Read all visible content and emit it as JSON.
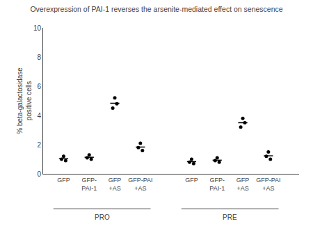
{
  "chart_data": {
    "type": "scatter",
    "title": "Overexpression of PAI-1 reverses the arsenite-mediated effect on senescence",
    "ylabel": "% beta-galactosidase\npositive cells",
    "ylim": [
      0,
      10
    ],
    "yticks": [
      0,
      2,
      4,
      6,
      8,
      10
    ],
    "grid": false,
    "color": "#000000",
    "marker": "circle",
    "groups": [
      {
        "name": "PRO",
        "categories": [
          "GFP",
          "GFP-\nPAI-1",
          "GFP\n+AS",
          "GFP-PAI\n+AS"
        ],
        "values": [
          [
            1.0,
            1.2,
            0.9
          ],
          [
            1.1,
            1.3,
            1.0
          ],
          [
            4.5,
            5.2,
            4.8
          ],
          [
            1.8,
            2.1,
            1.6
          ]
        ],
        "means": [
          1.0333333333,
          1.1333333333,
          4.8333333333,
          1.8333333333
        ]
      },
      {
        "name": "PRE",
        "categories": [
          "GFP",
          "GFP-\nPAI-1",
          "GFP\n+AS",
          "GFP-PAI\n+AS"
        ],
        "values": [
          [
            0.8,
            1.0,
            0.7
          ],
          [
            0.9,
            1.1,
            0.8
          ],
          [
            3.2,
            3.8,
            3.5
          ],
          [
            1.2,
            1.5,
            1.0
          ]
        ],
        "means": [
          0.8333333333,
          0.9333333333,
          3.5,
          1.2333333333
        ]
      }
    ]
  }
}
